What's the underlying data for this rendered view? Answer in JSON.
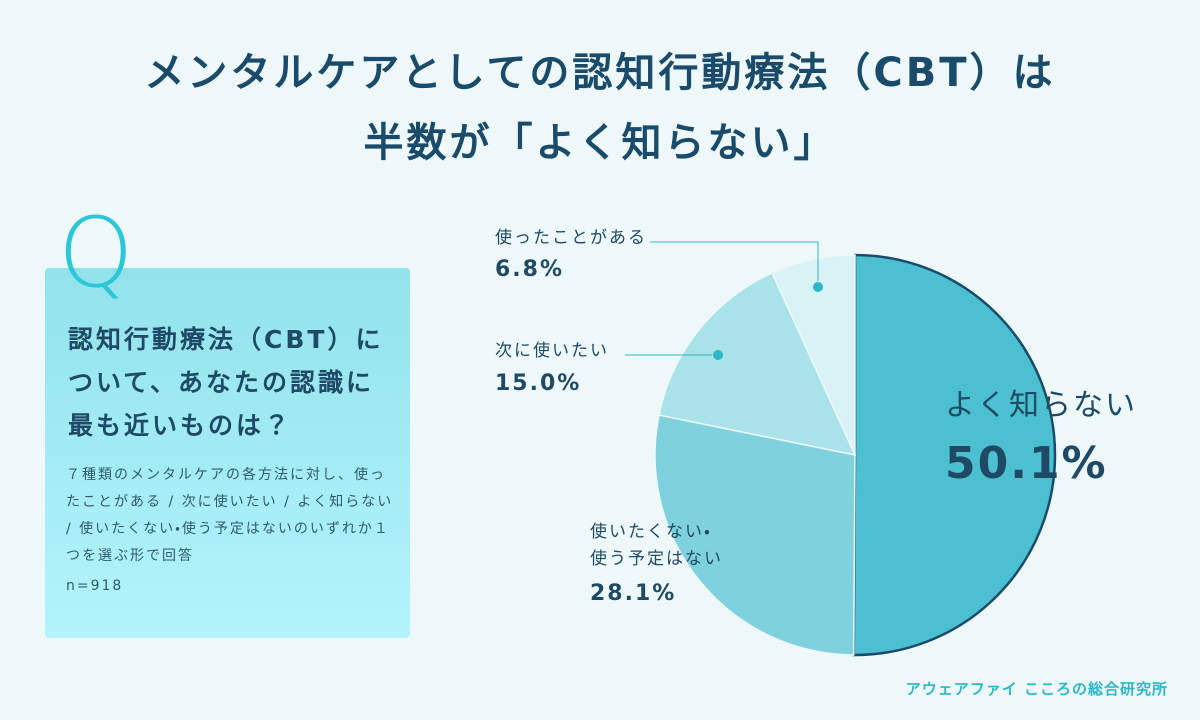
{
  "title": [
    "メンタルケアとしての認知行動療法（CBT）は",
    "半数が「よく知らない」"
  ],
  "question_box": {
    "mark": "Q",
    "question": "認知行動療法（CBT）について、あなたの認識に最も近いものは？",
    "description": "７種類のメンタルケアの各方法に対し、使ったことがある / 次に使いたい / よく知らない / 使いたくない・使う予定はないのいずれか１つを選ぶ形で回答",
    "sample": "n=918"
  },
  "chart_data": {
    "type": "pie",
    "categories": [
      "よく知らない",
      "使いたくない・\n使う予定はない",
      "次に使いたい",
      "使ったことがある"
    ],
    "values": [
      50.1,
      28.1,
      15.0,
      6.8
    ],
    "value_labels": [
      "50.1%",
      "28.1%",
      "15.0%",
      "6.8%"
    ],
    "colors": [
      "#4cc0d0",
      "#7fd2dd",
      "#a9e2e9",
      "#d9f2f5"
    ]
  },
  "footer": "アウェアファイ こころの総合研究所"
}
